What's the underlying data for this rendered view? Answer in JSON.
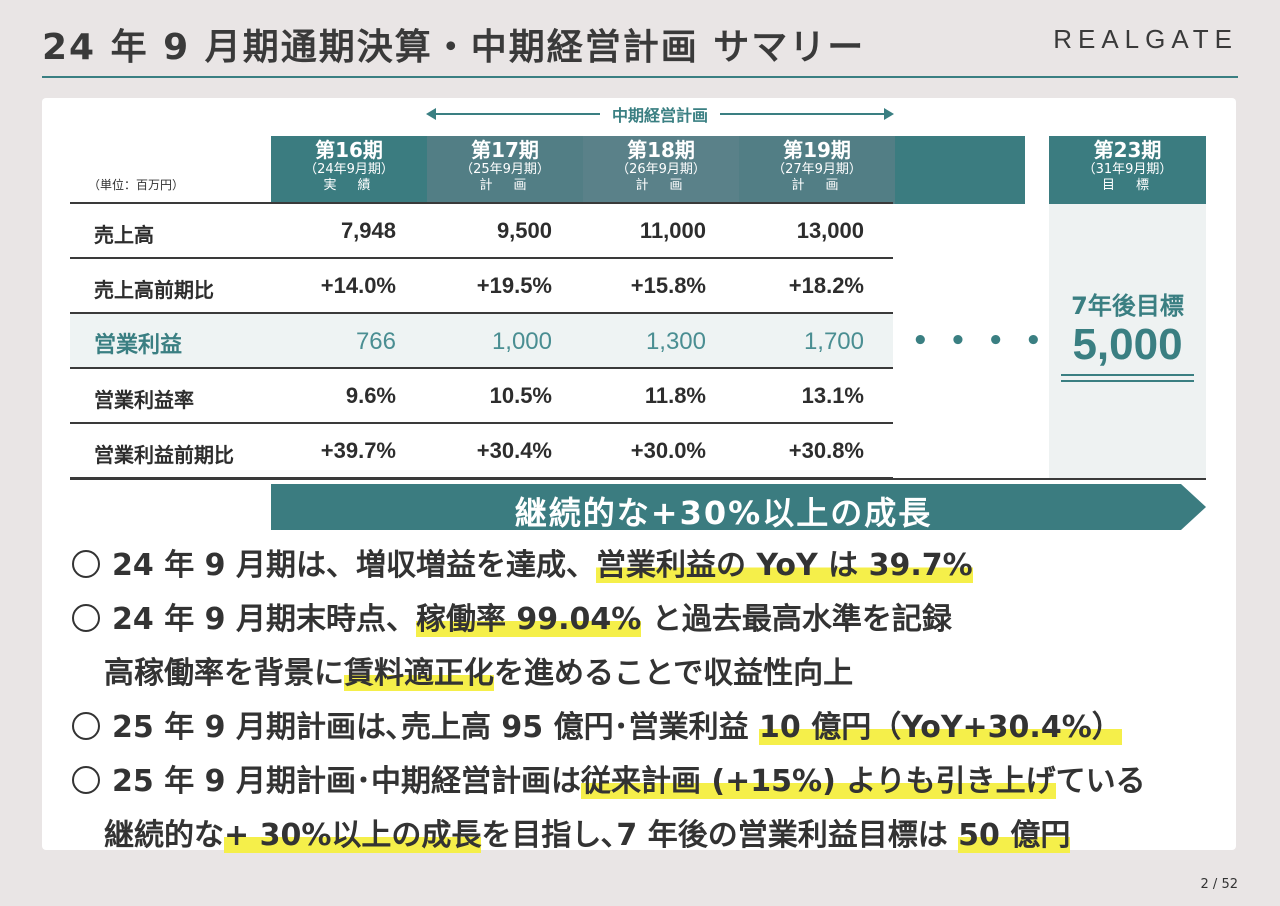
{
  "header": {
    "title": "24 年 9 月期通期決算・中期経営計画 サマリー",
    "logo": "REALGATE"
  },
  "table": {
    "unit_label": "（単位：百万円）",
    "midterm_label": "中期経営計画",
    "columns": [
      {
        "period": "第16期",
        "fy": "（24年9月期）",
        "kind": "実　績"
      },
      {
        "period": "第17期",
        "fy": "（25年9月期）",
        "kind": "計　画"
      },
      {
        "period": "第18期",
        "fy": "（26年9月期）",
        "kind": "計　画"
      },
      {
        "period": "第19期",
        "fy": "（27年9月期）",
        "kind": "計　画"
      }
    ],
    "target_column": {
      "period": "第23期",
      "fy": "（31年9月期）",
      "kind": "目　標"
    },
    "rows": [
      {
        "name": "売上高",
        "values": [
          "7,948",
          "9,500",
          "11,000",
          "13,000"
        ]
      },
      {
        "name": "売上高前期比",
        "values": [
          "+14.0%",
          "+19.5%",
          "+15.8%",
          "+18.2%"
        ]
      },
      {
        "name": "営業利益",
        "values": [
          "766",
          "1,000",
          "1,300",
          "1,700"
        ]
      },
      {
        "name": "営業利益率",
        "values": [
          "9.6%",
          "10.5%",
          "11.8%",
          "13.1%"
        ]
      },
      {
        "name": "営業利益前期比",
        "values": [
          "+39.7%",
          "+30.4%",
          "+30.0%",
          "+30.8%"
        ]
      }
    ],
    "dots": "• • • • •",
    "target_label": "7年後目標",
    "target_value": "5,000"
  },
  "banner": "継続的な+30%以上の成長",
  "bullets": {
    "b1_a": "24 年 9 月期は、増収増益を達成、",
    "b1_h": "営業利益の YoY は 39.7%",
    "b2_a": "24 年 9 月期末時点、",
    "b2_h": "稼働率 99.04%",
    "b2_b": " と過去最高水準を記録",
    "b2c_a": "高稼働率を背景に",
    "b2c_h": "賃料適正化",
    "b2c_b": "を進めることで収益性向上",
    "b3_a": "25 年 9 月期計画は､売上高 95 億円･営業利益 ",
    "b3_h": "10 億円（YoY+30.4%）",
    "b4_a": "25 年 9 月期計画･中期経営計画は",
    "b4_h": "従来計画 (+15%) よりも引き上げ",
    "b4_b": "ている",
    "b4c_a": "継続的な",
    "b4c_h": "+ 30%以上の成長",
    "b4c_b": "を目指し､7 年後の営業利益目標は ",
    "b4c_h2": "50 億円"
  },
  "pager": {
    "current": "2",
    "sep": "/",
    "total": "52"
  },
  "colors": {
    "teal": "#3b7c80",
    "highlight": "#f5ef4a"
  }
}
